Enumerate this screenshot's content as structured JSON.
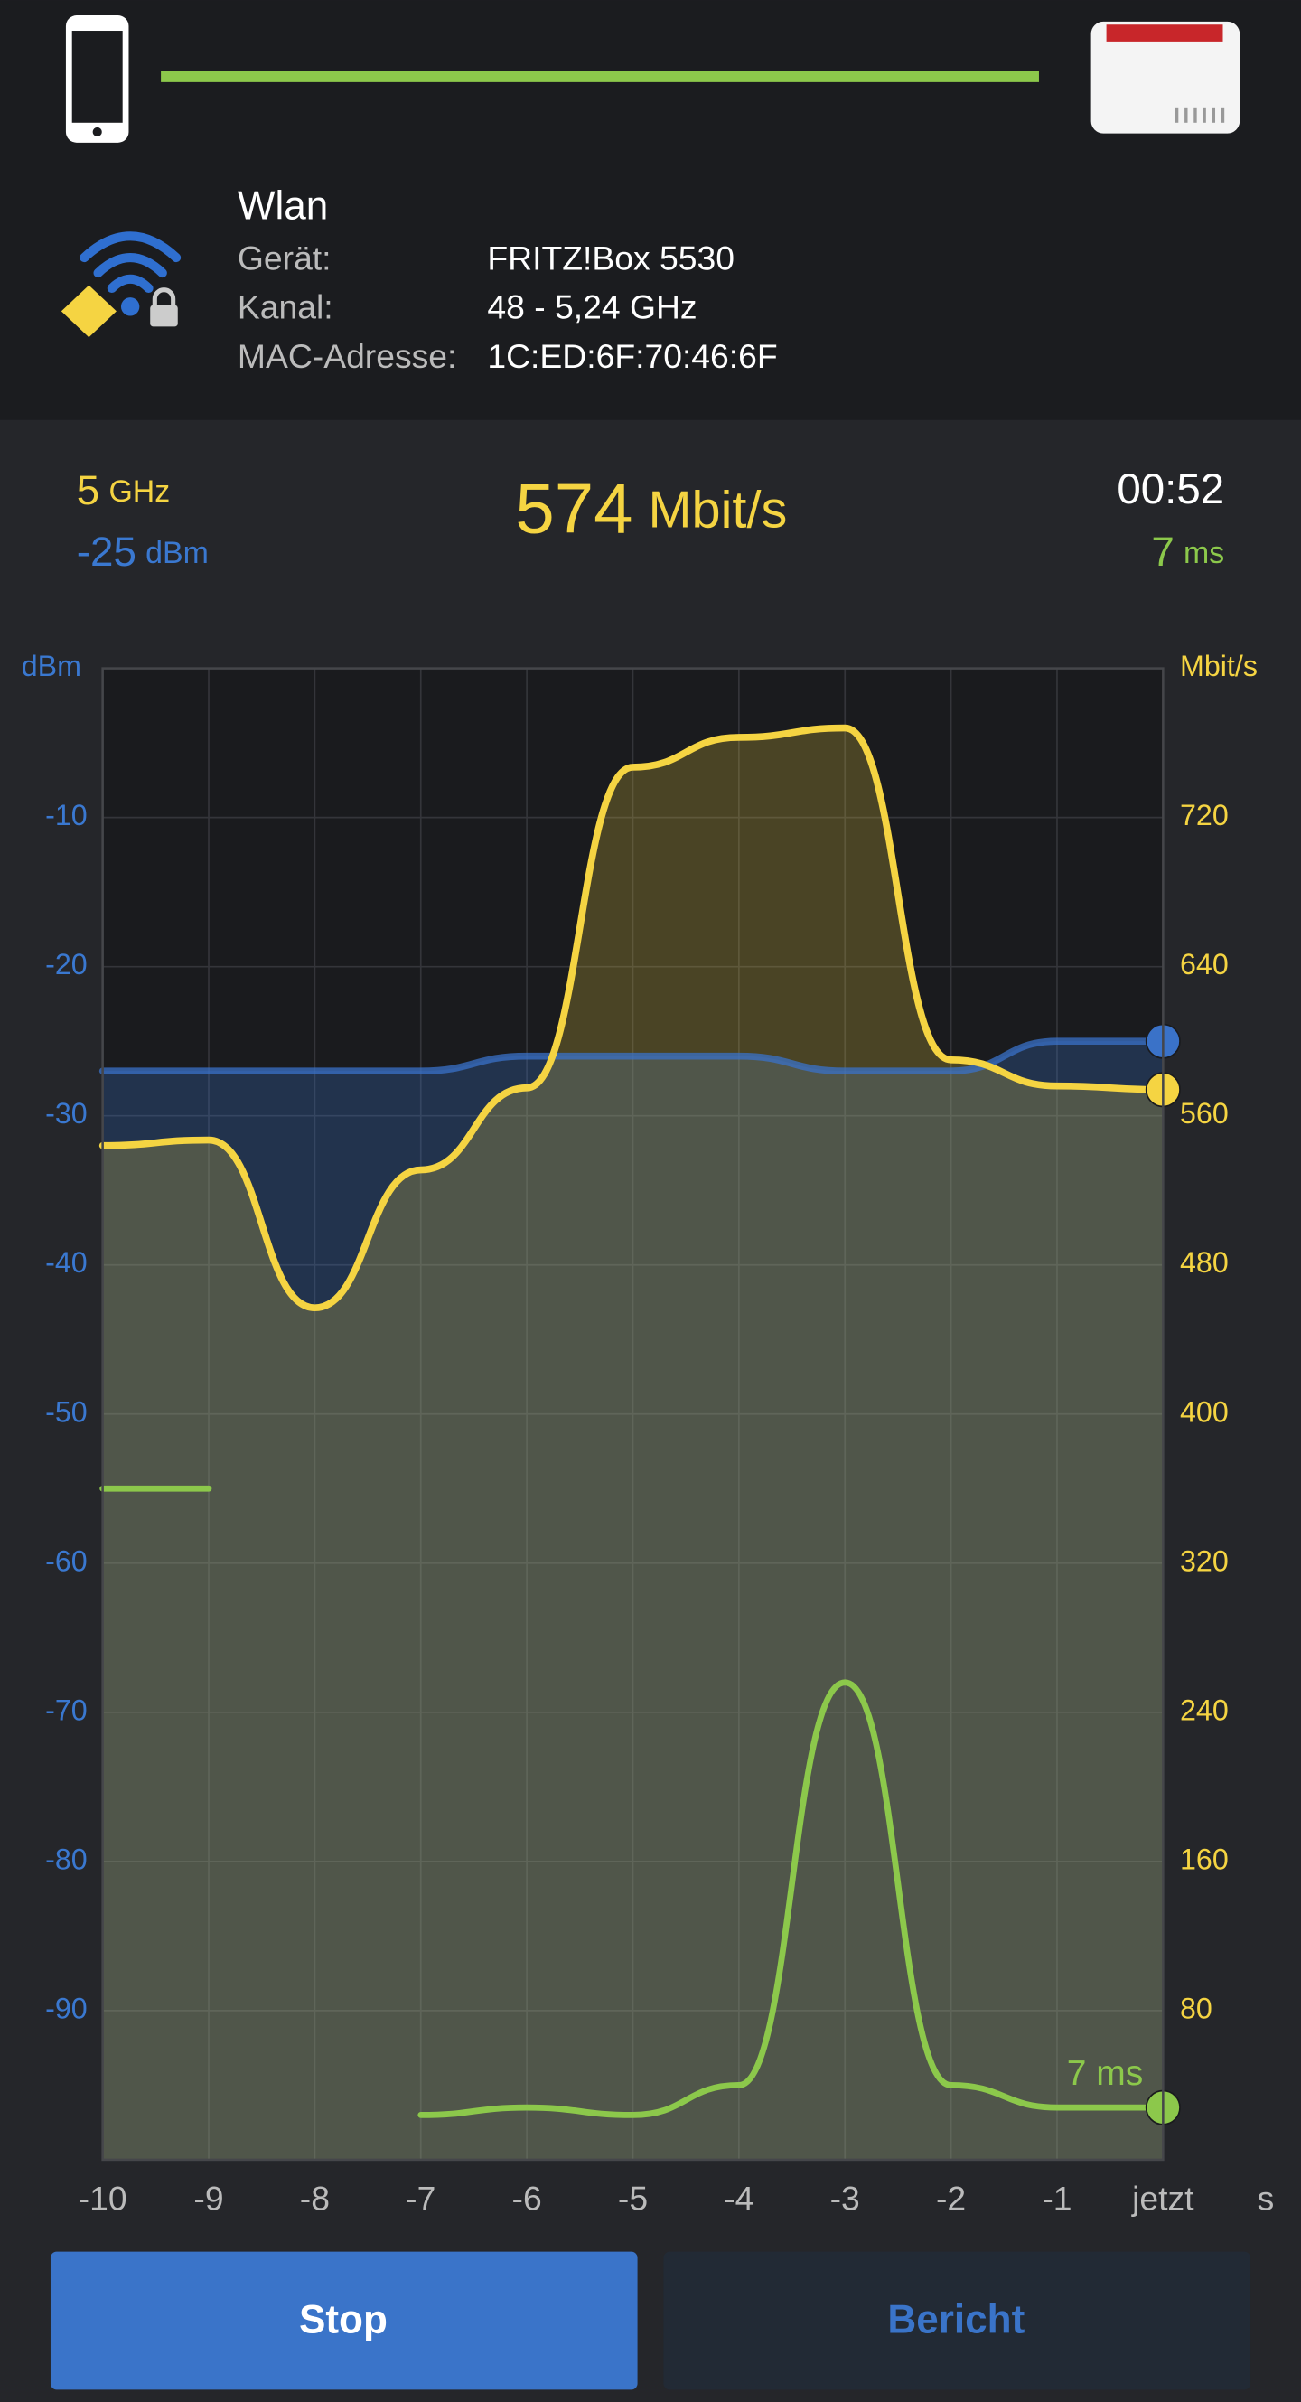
{
  "connection": {
    "title": "Wlan",
    "rows": [
      [
        "Gerät:",
        "FRITZ!Box 5530"
      ],
      [
        "Kanal:",
        "48 - 5,24 GHz"
      ],
      [
        "MAC-Adresse:",
        "1C:ED:6F:70:46:6F"
      ]
    ]
  },
  "stats": {
    "band": 5,
    "band_unit": "GHz",
    "signal": -25,
    "signal_unit": "dBm",
    "rate": 574,
    "rate_unit": "Mbit/s",
    "time": "00:52",
    "latency": 7,
    "latency_unit": "ms"
  },
  "buttons": [
    "Stop",
    "Bericht"
  ],
  "chart_data": {
    "type": "line",
    "x": [
      -10,
      -9,
      -8,
      -7,
      -6,
      -5,
      -4,
      -3,
      -2,
      -1,
      0
    ],
    "xlim": [
      -10,
      0
    ],
    "xticks": [
      -10,
      -9,
      -8,
      -7,
      -6,
      -5,
      -4,
      -3,
      -2,
      -1,
      {
        "value": 0,
        "label": "jetzt"
      }
    ],
    "x_label": "s",
    "y_label": "dBm",
    "ylim": [
      -100,
      0
    ],
    "yticks": [
      -90,
      -80,
      -70,
      -60,
      -50,
      -40,
      -30,
      -20,
      -10
    ],
    "y2_label": "Mbit/s",
    "y2lim": [
      0,
      800
    ],
    "y2ticks": [
      80,
      160,
      240,
      320,
      400,
      480,
      560,
      640,
      720
    ],
    "y3lim": [
      0,
      200
    ],
    "grid": true,
    "series": [
      {
        "name": "dBm",
        "color": "#3a72c8",
        "values": [
          -27,
          -27,
          -27,
          -27,
          -26,
          -26,
          -26,
          -27,
          -27,
          -25,
          -25
        ]
      },
      {
        "name": "Mbit/s",
        "color": "#f5d442",
        "axis": "y2",
        "values": [
          544,
          547,
          457,
          531,
          575,
          747,
          763,
          768,
          590,
          576,
          574
        ]
      },
      {
        "name": "ms",
        "color": "#8cc84b",
        "axis": "y3",
        "values": [
          90,
          90,
          null,
          6,
          7,
          6,
          10,
          64,
          10,
          7,
          7
        ]
      }
    ],
    "annotation": "7 ms"
  }
}
